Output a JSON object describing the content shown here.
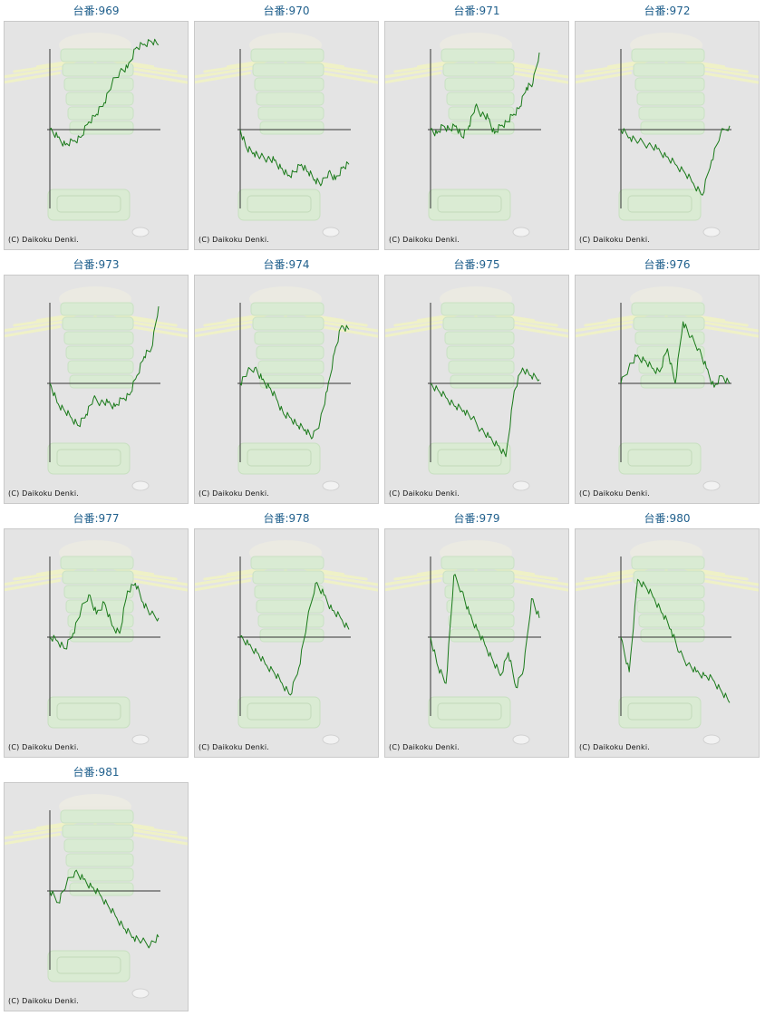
{
  "panel_title_prefix": "台番:",
  "copyright": "(C) Daikoku Denki.",
  "line_color": "#1a7a1a",
  "chart_data": [
    {
      "type": "line",
      "title": "台番:969",
      "y": [
        0,
        -0.1,
        -0.2,
        -0.15,
        -0.1,
        0.1,
        0.2,
        0.35,
        0.6,
        0.75,
        0.8,
        1.05,
        1.1,
        1.15,
        1.1
      ]
    },
    {
      "type": "line",
      "title": "台番:970",
      "y": [
        0,
        -0.25,
        -0.3,
        -0.35,
        -0.38,
        -0.4,
        -0.5,
        -0.6,
        -0.55,
        -0.45,
        -0.55,
        -0.65,
        -0.7,
        -0.55,
        -0.65,
        -0.5,
        -0.45
      ]
    },
    {
      "type": "line",
      "title": "台番:971",
      "y": [
        0,
        -0.05,
        0.05,
        0.0,
        0.05,
        -0.1,
        0.05,
        0.3,
        0.2,
        0.15,
        -0.05,
        0.05,
        0.1,
        0.2,
        0.3,
        0.55,
        0.6,
        1.0
      ]
    },
    {
      "type": "line",
      "title": "台番:972",
      "y": [
        0,
        -0.1,
        -0.15,
        -0.2,
        -0.25,
        -0.35,
        -0.45,
        -0.55,
        -0.7,
        -0.85,
        -0.4,
        -0.05,
        0.05
      ]
    },
    {
      "type": "line",
      "title": "台番:973",
      "y": [
        0,
        -0.25,
        -0.35,
        -0.45,
        -0.55,
        -0.4,
        -0.2,
        -0.25,
        -0.25,
        -0.3,
        -0.2,
        -0.15,
        0.1,
        0.35,
        0.45,
        1.0
      ]
    },
    {
      "type": "line",
      "title": "台番:974",
      "y": [
        0,
        0.15,
        0.2,
        0.05,
        -0.05,
        -0.2,
        -0.4,
        -0.45,
        -0.55,
        -0.6,
        -0.7,
        -0.5,
        -0.1,
        0.4,
        0.75,
        0.7
      ]
    },
    {
      "type": "line",
      "title": "台番:975",
      "y": [
        0,
        -0.1,
        -0.2,
        -0.3,
        -0.35,
        -0.45,
        -0.6,
        -0.7,
        -0.8,
        -0.95,
        -0.1,
        0.2,
        0.1,
        0.05
      ]
    },
    {
      "type": "line",
      "title": "台番:976",
      "y": [
        0,
        0.2,
        0.35,
        0.3,
        0.2,
        0.15,
        0.45,
        0.0,
        0.8,
        0.6,
        0.45,
        0.2,
        -0.05,
        0.1,
        0.0
      ]
    },
    {
      "type": "line",
      "title": "台番:977",
      "y": [
        0,
        -0.05,
        -0.15,
        0.05,
        0.35,
        0.55,
        0.3,
        0.45,
        0.15,
        0.05,
        0.6,
        0.7,
        0.45,
        0.3,
        0.25
      ]
    },
    {
      "type": "line",
      "title": "台番:978",
      "y": [
        0,
        -0.1,
        -0.2,
        -0.35,
        -0.45,
        -0.6,
        -0.75,
        -0.4,
        0.2,
        0.7,
        0.55,
        0.35,
        0.25,
        0.1
      ]
    },
    {
      "type": "line",
      "title": "台番:979",
      "y": [
        0,
        -0.4,
        -0.6,
        0.8,
        0.6,
        0.3,
        0.1,
        -0.1,
        -0.3,
        -0.5,
        -0.2,
        -0.65,
        -0.4,
        0.5,
        0.25
      ]
    },
    {
      "type": "line",
      "title": "台番:980",
      "y": [
        0,
        -0.45,
        0.75,
        0.65,
        0.5,
        0.3,
        0.1,
        -0.2,
        -0.35,
        -0.45,
        -0.5,
        -0.55,
        -0.7,
        -0.85
      ]
    },
    {
      "type": "line",
      "title": "台番:981",
      "y": [
        0,
        -0.15,
        0.1,
        0.25,
        0.15,
        0.05,
        -0.05,
        -0.2,
        -0.35,
        -0.5,
        -0.6,
        -0.65,
        -0.7,
        -0.6
      ]
    }
  ]
}
